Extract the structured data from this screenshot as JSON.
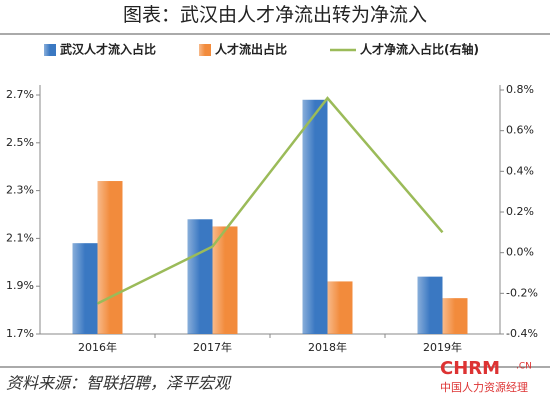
{
  "chart_data": {
    "type": "bar",
    "title": "图表：武汉由人才净流出转为净流入",
    "categories": [
      "2016年",
      "2017年",
      "2018年",
      "2019年"
    ],
    "series": [
      {
        "name": "武汉人才流入占比",
        "type": "bar",
        "color": "#3a78c2",
        "values": [
          2.08,
          2.18,
          2.68,
          1.94
        ]
      },
      {
        "name": "人才流出占比",
        "type": "bar",
        "color": "#f28b3c",
        "values": [
          2.34,
          2.15,
          1.92,
          1.85
        ]
      },
      {
        "name": "人才净流入占比(右轴)",
        "type": "line",
        "axis": "y2",
        "color": "#9bbb59",
        "values": [
          -0.25,
          0.03,
          0.76,
          0.1
        ]
      }
    ],
    "ylim": [
      1.7,
      2.7
    ],
    "yticks": [
      {
        "value": 1.7,
        "label": "1.7%"
      },
      {
        "value": 1.9,
        "label": "1.9%"
      },
      {
        "value": 2.1,
        "label": "2.1%"
      },
      {
        "value": 2.3,
        "label": "2.3%"
      },
      {
        "value": 2.5,
        "label": "2.5%"
      },
      {
        "value": 2.7,
        "label": "2.7%"
      }
    ],
    "y2lim": [
      -0.4,
      0.8
    ],
    "y2ticks": [
      {
        "value": -0.4,
        "label": "-0.4%"
      },
      {
        "value": -0.2,
        "label": "-0.2%"
      },
      {
        "value": 0,
        "label": "0.0%"
      },
      {
        "value": 0.2,
        "label": "0.2%"
      },
      {
        "value": 0.4,
        "label": "0.4%"
      },
      {
        "value": 0.6,
        "label": "0.6%"
      },
      {
        "value": 0.8,
        "label": "0.8%"
      }
    ],
    "source": "资料来源：智联招聘，泽平宏观",
    "watermark": [
      "CHRM",
      ".CN",
      "中国人力资源经理"
    ]
  }
}
